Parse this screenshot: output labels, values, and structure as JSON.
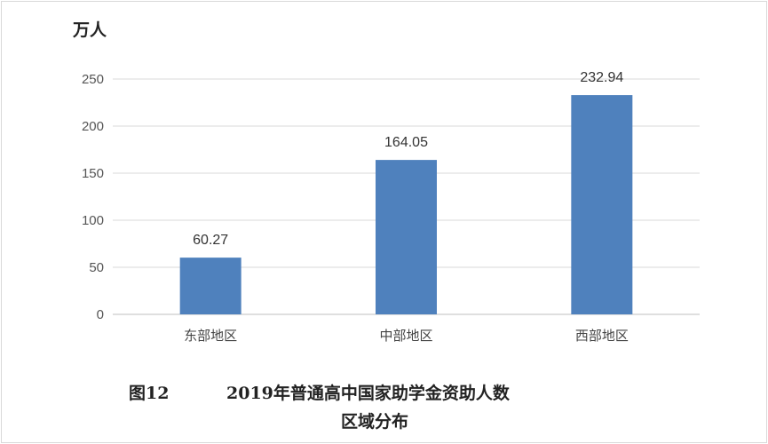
{
  "chart_data": {
    "type": "bar",
    "ylabel": "万人",
    "categories": [
      "东部地区",
      "中部地区",
      "西部地区"
    ],
    "values": [
      60.27,
      164.05,
      232.94
    ],
    "value_labels": [
      "60.27",
      "164.05",
      "232.94"
    ],
    "ylim": [
      0,
      250
    ],
    "yticks": [
      0,
      50,
      100,
      150,
      200,
      250
    ],
    "grid": true,
    "bar_color": "#4f81bd"
  },
  "caption": {
    "figure_number": "图12",
    "line1": "2019年普通高中国家助学金资助人数",
    "line2": "区域分布"
  }
}
